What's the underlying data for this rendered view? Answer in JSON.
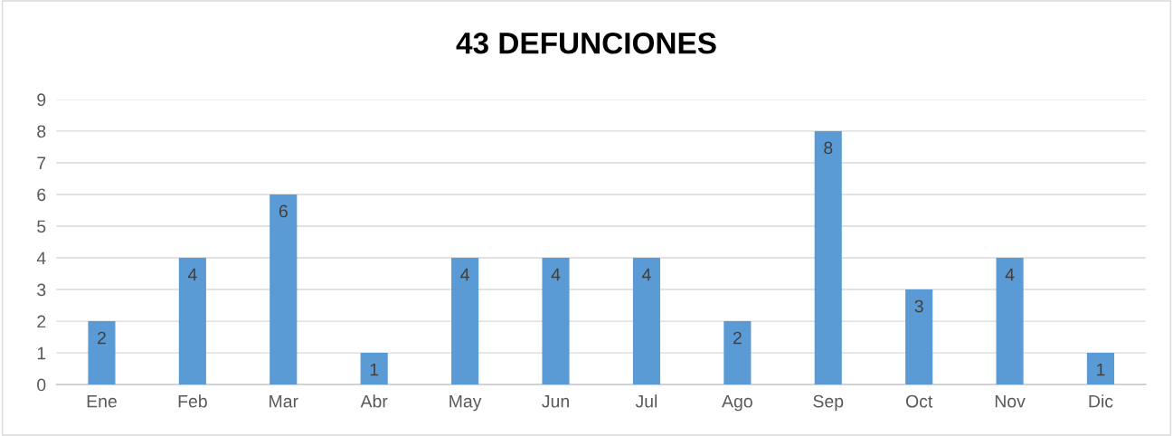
{
  "chart_data": {
    "type": "bar",
    "title": "43 DEFUNCIONES",
    "categories": [
      "Ene",
      "Feb",
      "Mar",
      "Abr",
      "May",
      "Jun",
      "Jul",
      "Ago",
      "Sep",
      "Oct",
      "Nov",
      "Dic"
    ],
    "values": [
      2,
      4,
      6,
      1,
      4,
      4,
      4,
      2,
      8,
      3,
      4,
      1
    ],
    "color": "#5b9bd5",
    "ylim": [
      0,
      9
    ],
    "yticks": [
      0,
      1,
      2,
      3,
      4,
      5,
      6,
      7,
      8,
      9
    ],
    "grid": "y",
    "data_labels": true
  }
}
